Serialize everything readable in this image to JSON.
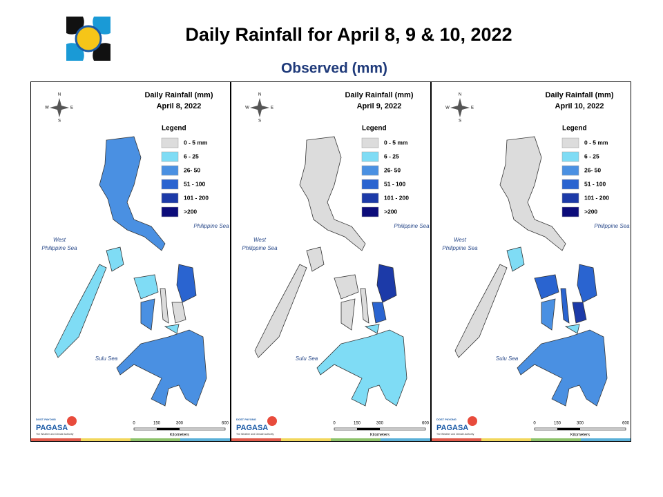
{
  "header": {
    "title": "Daily Rainfall for April 8, 9 & 10, 2022",
    "subtitle": "Observed (mm)"
  },
  "panels": [
    {
      "title": "Daily Rainfall (mm)",
      "date": "April 8, 2022"
    },
    {
      "title": "Daily Rainfall (mm)",
      "date": "April 9, 2022"
    },
    {
      "title": "Daily Rainfall (mm)",
      "date": "April 10, 2022"
    }
  ],
  "legend": {
    "title": "Legend",
    "items": [
      {
        "label": "0 - 5 mm",
        "color": "#dcdcdc"
      },
      {
        "label": "6 - 25",
        "color": "#7fdcf5"
      },
      {
        "label": "26- 50",
        "color": "#4a90e2"
      },
      {
        "label": "51 - 100",
        "color": "#2a64d0"
      },
      {
        "label": "101 - 200",
        "color": "#1c3aa8"
      },
      {
        "label": ">200",
        "color": "#0c0c7a"
      }
    ]
  },
  "seas": {
    "west": [
      "West",
      "Philippine Sea"
    ],
    "east": "Philippine Sea",
    "south": "Sulu Sea"
  },
  "compass": {
    "n": "N",
    "s": "S",
    "w": "W",
    "e": "E"
  },
  "scale": {
    "ticks": [
      "0",
      "150",
      "300",
      "600"
    ],
    "unit": "Kilometers"
  },
  "logo": {
    "top": "DOST PAYONG",
    "name": "PAGASA",
    "tagline": "The Weather and Climate Authority"
  }
}
